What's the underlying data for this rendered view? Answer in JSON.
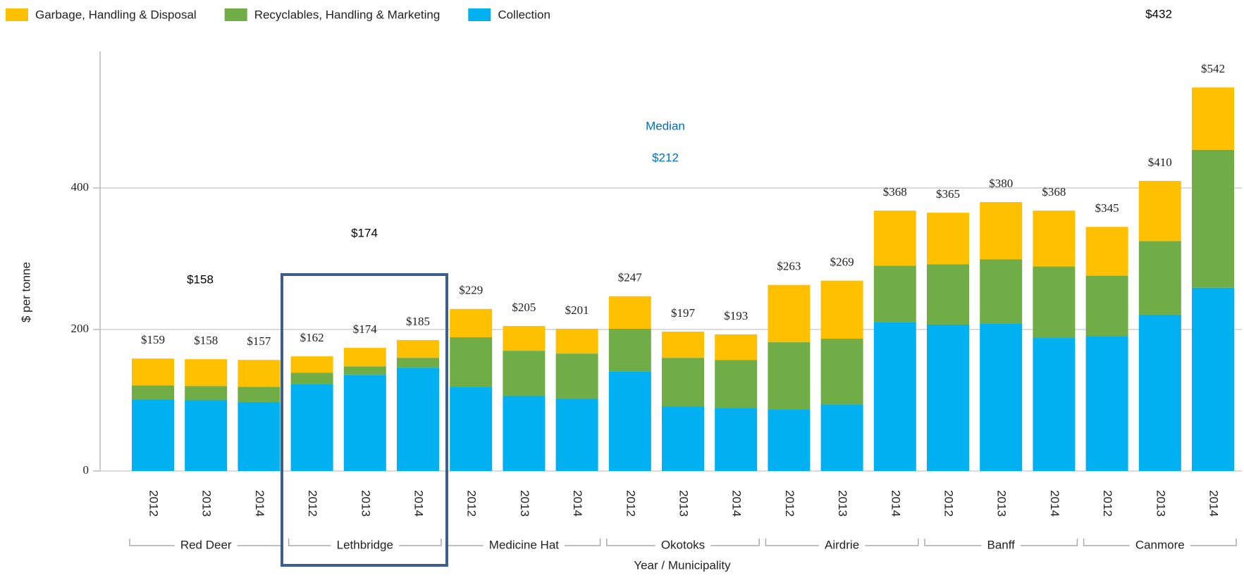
{
  "chart_data": {
    "type": "stacked-bar",
    "categories": [
      "2012",
      "2013",
      "2014",
      "2012",
      "2013",
      "2014",
      "2012",
      "2013",
      "2014",
      "2012",
      "2013",
      "2014",
      "2012",
      "2013",
      "2014",
      "2012",
      "2013",
      "2014",
      "2012",
      "2013",
      "2014"
    ],
    "groups": [
      "Red Deer",
      "Lethbridge",
      "Medicine Hat",
      "Okotoks",
      "Airdrie",
      "Banff",
      "Canmore"
    ],
    "series": [
      {
        "name": "Garbage, Handling & Disposal",
        "color": "#ffc000",
        "values": [
          38,
          38,
          38,
          23,
          26,
          25,
          40,
          35,
          35,
          46,
          37,
          36,
          81,
          82,
          78,
          73,
          81,
          79,
          69,
          85,
          88
        ]
      },
      {
        "name": "Recyclables, Handling & Marketing",
        "color": "#70ad47",
        "values": [
          20,
          20,
          22,
          16,
          12,
          14,
          70,
          64,
          64,
          60,
          69,
          68,
          95,
          93,
          80,
          85,
          91,
          101,
          86,
          104,
          195
        ]
      },
      {
        "name": "Collection",
        "color": "#00b0f0",
        "values": [
          101,
          100,
          97,
          123,
          136,
          146,
          119,
          106,
          102,
          141,
          91,
          89,
          87,
          94,
          210,
          207,
          208,
          188,
          190,
          221,
          259
        ]
      }
    ],
    "total_labels": [
      "$159",
      "$158",
      "$157",
      "$162",
      "$174",
      "$185",
      "$229",
      "$205",
      "$201",
      "$247",
      "$197",
      "$193",
      "$263",
      "$269",
      "$368",
      "$365",
      "$380",
      "$368",
      "$345",
      "$410",
      "$542"
    ],
    "annotations": [
      "$158",
      "$174",
      "Median",
      "$212",
      "$432"
    ],
    "y_label": "$ per tonne",
    "x_label": "Year / Municipality",
    "ylim": [
      0,
      593
    ],
    "yticks": [
      0,
      200,
      400
    ],
    "grid": true
  }
}
